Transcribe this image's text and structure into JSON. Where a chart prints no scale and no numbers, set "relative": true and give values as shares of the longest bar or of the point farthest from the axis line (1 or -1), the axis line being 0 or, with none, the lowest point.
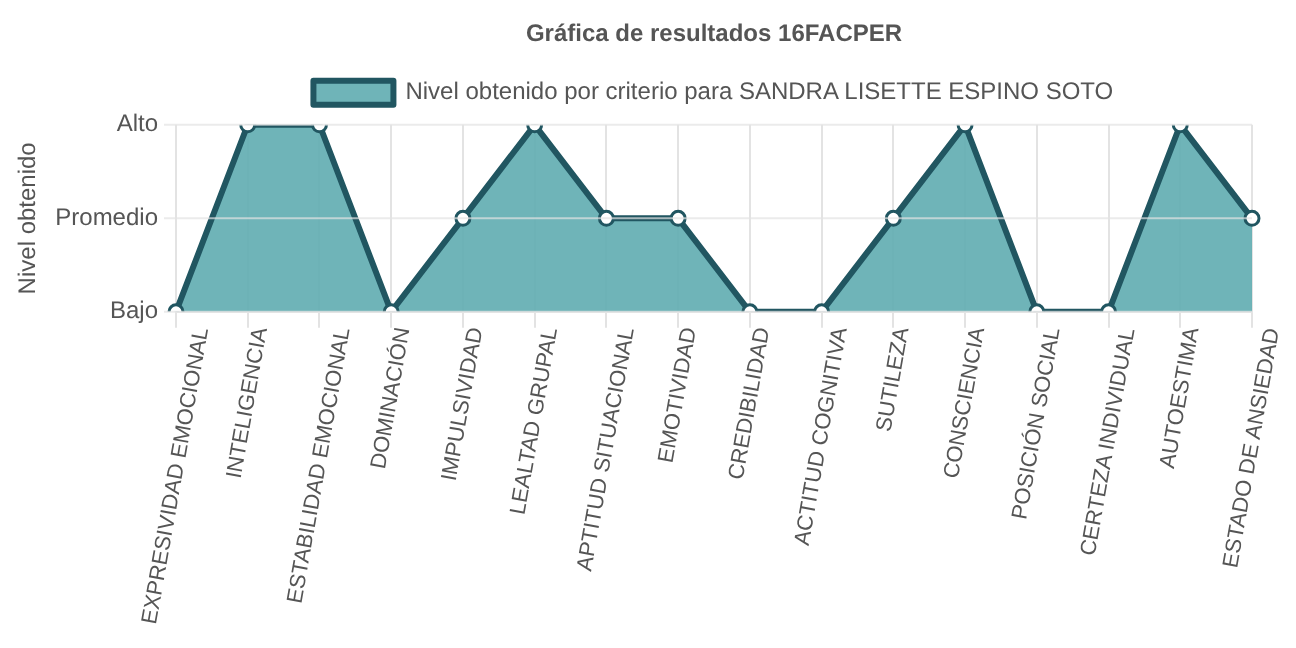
{
  "chart_data": {
    "type": "area",
    "title": "Gráfica de resultados 16FACPER",
    "ylabel": "Nivel obtenido",
    "categories": [
      "EXPRESIVIDAD EMOCIONAL",
      "INTELIGENCIA",
      "ESTABILIDAD EMOCIONAL",
      "DOMINACIÓN",
      "IMPULSIVIDAD",
      "LEALTAD GRUPAL",
      "APTITUD SITUACIONAL",
      "EMOTIVIDAD",
      "CREDIBILIDAD",
      "ACTITUD COGNITIVA",
      "SUTILEZA",
      "CONSCIENCIA",
      "POSICIÓN SOCIAL",
      "CERTEZA INDIVIDUAL",
      "AUTOESTIMA",
      "ESTADO DE ANSIEDAD"
    ],
    "series": [
      {
        "name": "Nivel obtenido por criterio para SANDRA LISETTE ESPINO SOTO",
        "color": "#215661",
        "values": [
          0,
          1,
          1,
          0,
          0.5,
          1,
          0.5,
          0.5,
          0,
          0,
          0.5,
          1,
          0,
          0,
          1,
          0.5
        ]
      }
    ],
    "relative": true,
    "ref_lines": [
      {
        "axis": "y",
        "value": 0,
        "label": "Bajo",
        "color": "#e3e3e3"
      },
      {
        "axis": "y",
        "value": 0.5,
        "label": "Promedio",
        "color": "#e3e3e3"
      },
      {
        "axis": "y",
        "value": 1,
        "label": "Alto",
        "color": "#e3e3e3"
      }
    ],
    "grid": "x",
    "legend": "top",
    "marker": "circle"
  }
}
